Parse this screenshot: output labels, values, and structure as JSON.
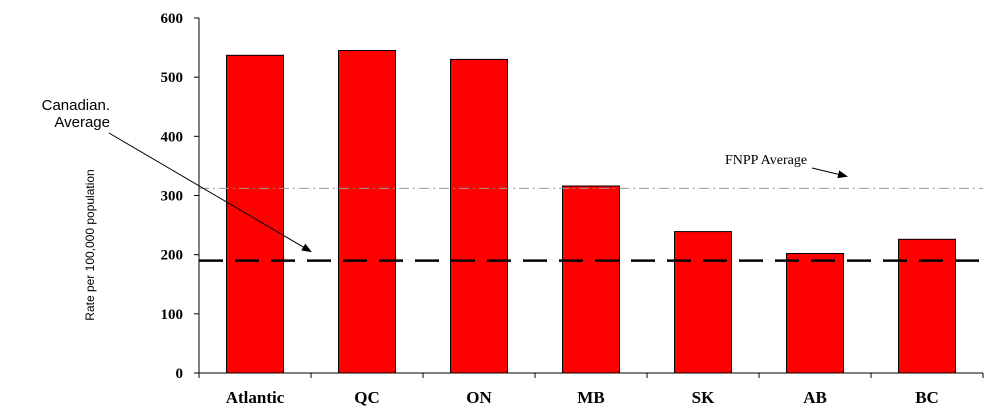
{
  "chart_data": {
    "type": "bar",
    "categories": [
      "Atlantic",
      "QC",
      "ON",
      "MB",
      "SK",
      "AB",
      "BC"
    ],
    "values": [
      537,
      545,
      530,
      316,
      239,
      202,
      226
    ],
    "ylabel": "Rate per 100,000 population",
    "ylim": [
      0,
      600
    ],
    "yticks": [
      0,
      100,
      200,
      300,
      400,
      500,
      600
    ],
    "grid": false,
    "colors": {
      "bar": "#ff0000",
      "bar_edge": "#000000",
      "canadian_line": "#000000",
      "fnpp_line": "#999999"
    },
    "reference_lines": [
      {
        "label": "Canadian.\nAverage",
        "value": 190,
        "style": "dashed"
      },
      {
        "label": "FNPP Average",
        "value": 312,
        "style": "dash-dot"
      }
    ]
  }
}
